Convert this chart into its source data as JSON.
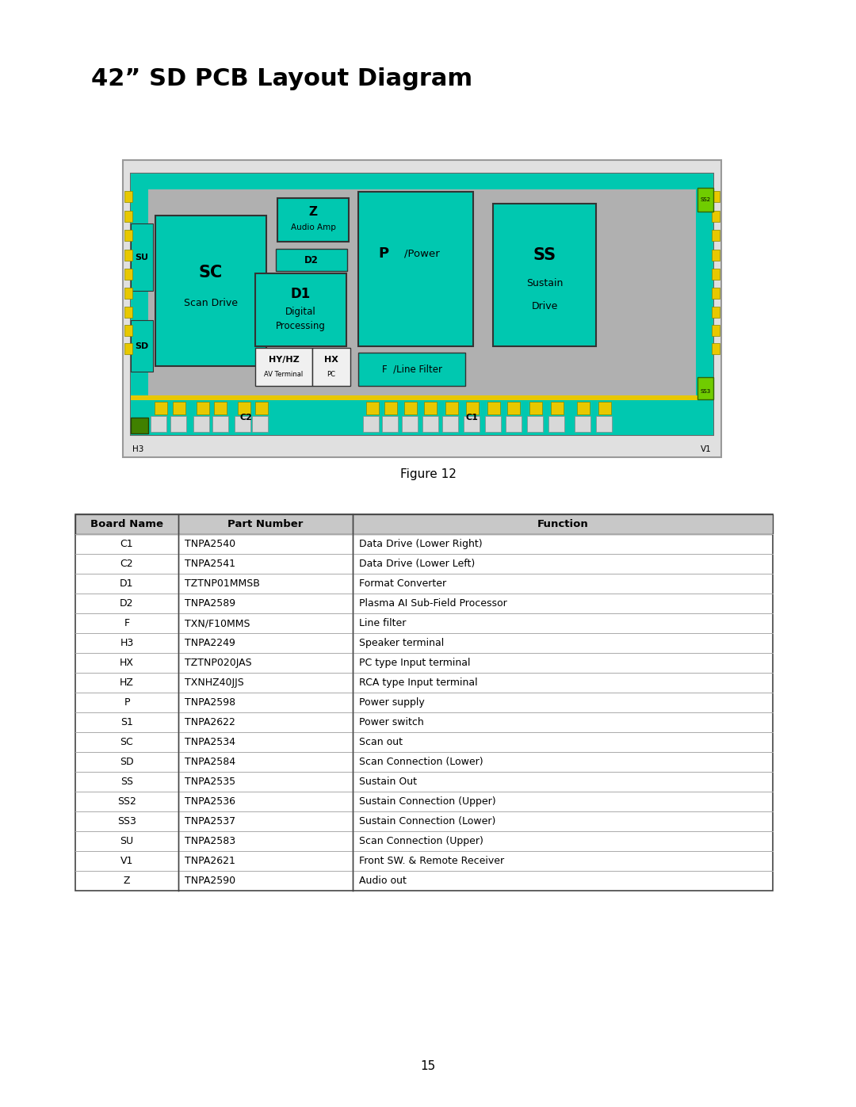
{
  "title": "42” SD PCB Layout Diagram",
  "figure_label": "Figure 12",
  "page_number": "15",
  "bg_color": "#ffffff",
  "pcb_bg": "#b0b0b0",
  "teal": "#00c8b0",
  "yellow": "#e8c800",
  "green_bright": "#70cc00",
  "green_dark": "#408000",
  "table_header_bg": "#c8c8c8",
  "table_data": [
    [
      "C1",
      "TNPA2540",
      "Data Drive (Lower Right)"
    ],
    [
      "C2",
      "TNPA2541",
      "Data Drive (Lower Left)"
    ],
    [
      "D1",
      "TZTNP01MMSB",
      "Format Converter"
    ],
    [
      "D2",
      "TNPA2589",
      "Plasma AI Sub-Field Processor"
    ],
    [
      "F",
      "TXN/F10MMS",
      "Line filter"
    ],
    [
      "H3",
      "TNPA2249",
      "Speaker terminal"
    ],
    [
      "HX",
      "TZTNP020JAS",
      "PC type Input terminal"
    ],
    [
      "HZ",
      "TXNHZ40JJS",
      "RCA type Input terminal"
    ],
    [
      "P",
      "TNPA2598",
      "Power supply"
    ],
    [
      "S1",
      "TNPA2622",
      "Power switch"
    ],
    [
      "SC",
      "TNPA2534",
      "Scan out"
    ],
    [
      "SD",
      "TNPA2584",
      "Scan Connection (Lower)"
    ],
    [
      "SS",
      "TNPA2535",
      "Sustain Out"
    ],
    [
      "SS2",
      "TNPA2536",
      "Sustain Connection (Upper)"
    ],
    [
      "SS3",
      "TNPA2537",
      "Sustain Connection (Lower)"
    ],
    [
      "SU",
      "TNPA2583",
      "Scan Connection (Upper)"
    ],
    [
      "V1",
      "TNPA2621",
      "Front SW. & Remote Receiver"
    ],
    [
      "Z",
      "TNPA2590",
      "Audio out"
    ]
  ],
  "col_headers": [
    "Board Name",
    "Part Number",
    "Function"
  ]
}
